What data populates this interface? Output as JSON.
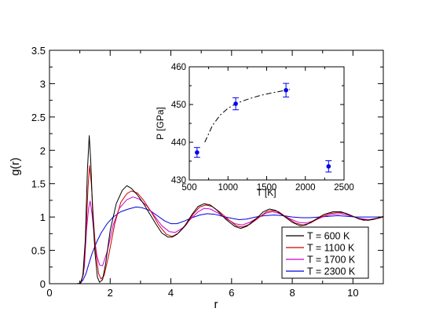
{
  "chart_data": [
    {
      "type": "line",
      "xlabel": "r",
      "ylabel": "g(r)",
      "xlim": [
        0,
        11
      ],
      "ylim": [
        0,
        3.5
      ],
      "x_ticks": [
        0,
        2,
        4,
        6,
        8,
        10
      ],
      "y_ticks": [
        "0",
        "0.5",
        "1",
        "1.5",
        "2",
        "2.5",
        "3",
        "3.5"
      ],
      "grid": false,
      "legend_position": "bottom-right",
      "series": [
        {
          "name": "T = 600 K",
          "color": "#000000",
          "points": [
            [
              0,
              0
            ],
            [
              0.95,
              0
            ],
            [
              1.02,
              0.01
            ],
            [
              1.1,
              0.12
            ],
            [
              1.18,
              0.65
            ],
            [
              1.25,
              1.7
            ],
            [
              1.31,
              2.22
            ],
            [
              1.36,
              1.85
            ],
            [
              1.42,
              1.1
            ],
            [
              1.5,
              0.45
            ],
            [
              1.58,
              0.1
            ],
            [
              1.65,
              0.02
            ],
            [
              1.75,
              0.06
            ],
            [
              1.85,
              0.3
            ],
            [
              2.0,
              0.8
            ],
            [
              2.2,
              1.2
            ],
            [
              2.4,
              1.4
            ],
            [
              2.55,
              1.47
            ],
            [
              2.7,
              1.43
            ],
            [
              2.9,
              1.33
            ],
            [
              3.1,
              1.2
            ],
            [
              3.3,
              1.05
            ],
            [
              3.5,
              0.9
            ],
            [
              3.7,
              0.76
            ],
            [
              3.9,
              0.7
            ],
            [
              4.05,
              0.7
            ],
            [
              4.2,
              0.74
            ],
            [
              4.45,
              0.86
            ],
            [
              4.7,
              1.04
            ],
            [
              4.9,
              1.16
            ],
            [
              5.1,
              1.2
            ],
            [
              5.3,
              1.18
            ],
            [
              5.5,
              1.11
            ],
            [
              5.8,
              0.97
            ],
            [
              6.1,
              0.86
            ],
            [
              6.3,
              0.83
            ],
            [
              6.5,
              0.86
            ],
            [
              6.8,
              0.97
            ],
            [
              7.05,
              1.08
            ],
            [
              7.25,
              1.12
            ],
            [
              7.45,
              1.1
            ],
            [
              7.7,
              1.02
            ],
            [
              8.0,
              0.92
            ],
            [
              8.25,
              0.87
            ],
            [
              8.45,
              0.88
            ],
            [
              8.75,
              0.96
            ],
            [
              9.05,
              1.04
            ],
            [
              9.35,
              1.08
            ],
            [
              9.6,
              1.08
            ],
            [
              9.9,
              1.03
            ],
            [
              10.2,
              0.97
            ],
            [
              10.5,
              0.95
            ],
            [
              10.8,
              0.98
            ],
            [
              11,
              1.01
            ]
          ]
        },
        {
          "name": "T = 1100 K",
          "color": "#cc0000",
          "points": [
            [
              0,
              0
            ],
            [
              0.95,
              0
            ],
            [
              1.03,
              0.01
            ],
            [
              1.12,
              0.15
            ],
            [
              1.2,
              0.75
            ],
            [
              1.27,
              1.45
            ],
            [
              1.32,
              1.77
            ],
            [
              1.38,
              1.5
            ],
            [
              1.45,
              0.95
            ],
            [
              1.53,
              0.45
            ],
            [
              1.62,
              0.15
            ],
            [
              1.7,
              0.07
            ],
            [
              1.8,
              0.12
            ],
            [
              1.95,
              0.42
            ],
            [
              2.15,
              0.9
            ],
            [
              2.35,
              1.22
            ],
            [
              2.55,
              1.35
            ],
            [
              2.7,
              1.39
            ],
            [
              2.9,
              1.36
            ],
            [
              3.1,
              1.25
            ],
            [
              3.35,
              1.08
            ],
            [
              3.6,
              0.88
            ],
            [
              3.85,
              0.74
            ],
            [
              4.05,
              0.71
            ],
            [
              4.25,
              0.76
            ],
            [
              4.5,
              0.88
            ],
            [
              4.75,
              1.05
            ],
            [
              4.95,
              1.15
            ],
            [
              5.15,
              1.18
            ],
            [
              5.35,
              1.16
            ],
            [
              5.6,
              1.08
            ],
            [
              5.9,
              0.96
            ],
            [
              6.15,
              0.87
            ],
            [
              6.35,
              0.85
            ],
            [
              6.6,
              0.89
            ],
            [
              6.9,
              0.99
            ],
            [
              7.15,
              1.08
            ],
            [
              7.35,
              1.1
            ],
            [
              7.55,
              1.08
            ],
            [
              7.8,
              1.0
            ],
            [
              8.1,
              0.91
            ],
            [
              8.35,
              0.88
            ],
            [
              8.6,
              0.91
            ],
            [
              8.9,
              0.99
            ],
            [
              9.2,
              1.05
            ],
            [
              9.5,
              1.07
            ],
            [
              9.75,
              1.06
            ],
            [
              10.05,
              1.0
            ],
            [
              10.35,
              0.95
            ],
            [
              10.65,
              0.96
            ],
            [
              11,
              1.0
            ]
          ]
        },
        {
          "name": "T = 1700 K",
          "color": "#cc00cc",
          "points": [
            [
              0,
              0
            ],
            [
              0.95,
              0
            ],
            [
              1.05,
              0.02
            ],
            [
              1.15,
              0.25
            ],
            [
              1.22,
              0.8
            ],
            [
              1.29,
              1.13
            ],
            [
              1.34,
              1.24
            ],
            [
              1.4,
              1.05
            ],
            [
              1.48,
              0.7
            ],
            [
              1.56,
              0.42
            ],
            [
              1.65,
              0.28
            ],
            [
              1.75,
              0.27
            ],
            [
              1.9,
              0.48
            ],
            [
              2.1,
              0.88
            ],
            [
              2.3,
              1.13
            ],
            [
              2.55,
              1.26
            ],
            [
              2.75,
              1.3
            ],
            [
              2.95,
              1.27
            ],
            [
              3.2,
              1.17
            ],
            [
              3.45,
              1.02
            ],
            [
              3.7,
              0.87
            ],
            [
              3.95,
              0.78
            ],
            [
              4.15,
              0.77
            ],
            [
              4.4,
              0.84
            ],
            [
              4.65,
              0.97
            ],
            [
              4.9,
              1.08
            ],
            [
              5.1,
              1.13
            ],
            [
              5.3,
              1.12
            ],
            [
              5.55,
              1.06
            ],
            [
              5.85,
              0.97
            ],
            [
              6.1,
              0.9
            ],
            [
              6.35,
              0.88
            ],
            [
              6.6,
              0.92
            ],
            [
              6.9,
              1.0
            ],
            [
              7.15,
              1.06
            ],
            [
              7.35,
              1.08
            ],
            [
              7.6,
              1.05
            ],
            [
              7.9,
              0.98
            ],
            [
              8.2,
              0.92
            ],
            [
              8.45,
              0.91
            ],
            [
              8.7,
              0.94
            ],
            [
              9.0,
              1.0
            ],
            [
              9.3,
              1.04
            ],
            [
              9.6,
              1.05
            ],
            [
              9.9,
              1.02
            ],
            [
              10.2,
              0.98
            ],
            [
              10.5,
              0.96
            ],
            [
              10.8,
              0.98
            ],
            [
              11,
              1.0
            ]
          ]
        },
        {
          "name": "T = 2300 K",
          "color": "#0000dd",
          "points": [
            [
              0,
              0
            ],
            [
              0.9,
              0
            ],
            [
              1.0,
              0.01
            ],
            [
              1.1,
              0.05
            ],
            [
              1.2,
              0.15
            ],
            [
              1.3,
              0.3
            ],
            [
              1.4,
              0.45
            ],
            [
              1.55,
              0.62
            ],
            [
              1.7,
              0.76
            ],
            [
              1.9,
              0.9
            ],
            [
              2.1,
              1.0
            ],
            [
              2.35,
              1.08
            ],
            [
              2.6,
              1.12
            ],
            [
              2.85,
              1.15
            ],
            [
              3.05,
              1.14
            ],
            [
              3.3,
              1.1
            ],
            [
              3.55,
              1.02
            ],
            [
              3.8,
              0.94
            ],
            [
              4.0,
              0.9
            ],
            [
              4.2,
              0.9
            ],
            [
              4.45,
              0.94
            ],
            [
              4.7,
              0.99
            ],
            [
              4.95,
              1.03
            ],
            [
              5.2,
              1.05
            ],
            [
              5.45,
              1.04
            ],
            [
              5.7,
              1.01
            ],
            [
              6.0,
              0.98
            ],
            [
              6.25,
              0.96
            ],
            [
              6.5,
              0.97
            ],
            [
              6.8,
              1.0
            ],
            [
              7.1,
              1.02
            ],
            [
              7.4,
              1.03
            ],
            [
              7.7,
              1.02
            ],
            [
              8.0,
              1.0
            ],
            [
              8.3,
              0.99
            ],
            [
              8.6,
              0.99
            ],
            [
              8.9,
              1.0
            ],
            [
              9.2,
              1.01
            ],
            [
              9.5,
              1.02
            ],
            [
              9.8,
              1.01
            ],
            [
              10.1,
              1.0
            ],
            [
              10.4,
              1.0
            ],
            [
              10.7,
              1.0
            ],
            [
              11,
              1.0
            ]
          ]
        }
      ]
    },
    {
      "type": "scatter",
      "xlabel": "T [K]",
      "ylabel": "P [GPa]",
      "xlim": [
        500,
        2500
      ],
      "ylim": [
        430,
        460
      ],
      "x_ticks": [
        500,
        1000,
        1500,
        2000,
        2500
      ],
      "y_ticks": [
        430,
        440,
        450,
        460
      ],
      "grid": false,
      "points": [
        {
          "x": 600,
          "y": 437.3,
          "err": 1.3
        },
        {
          "x": 1100,
          "y": 450.2,
          "err": 1.6
        },
        {
          "x": 1750,
          "y": 453.8,
          "err": 1.8
        },
        {
          "x": 2300,
          "y": 433.6,
          "err": 1.5
        }
      ],
      "marker_color": "#0000ee",
      "fit_curve": [
        [
          700,
          440.0
        ],
        [
          800,
          444.5
        ],
        [
          900,
          447.2
        ],
        [
          1000,
          449.0
        ],
        [
          1100,
          450.2
        ],
        [
          1200,
          451.0
        ],
        [
          1300,
          451.7
        ],
        [
          1400,
          452.3
        ],
        [
          1500,
          452.8
        ],
        [
          1600,
          453.2
        ],
        [
          1700,
          453.6
        ],
        [
          1800,
          454.0
        ]
      ]
    }
  ]
}
